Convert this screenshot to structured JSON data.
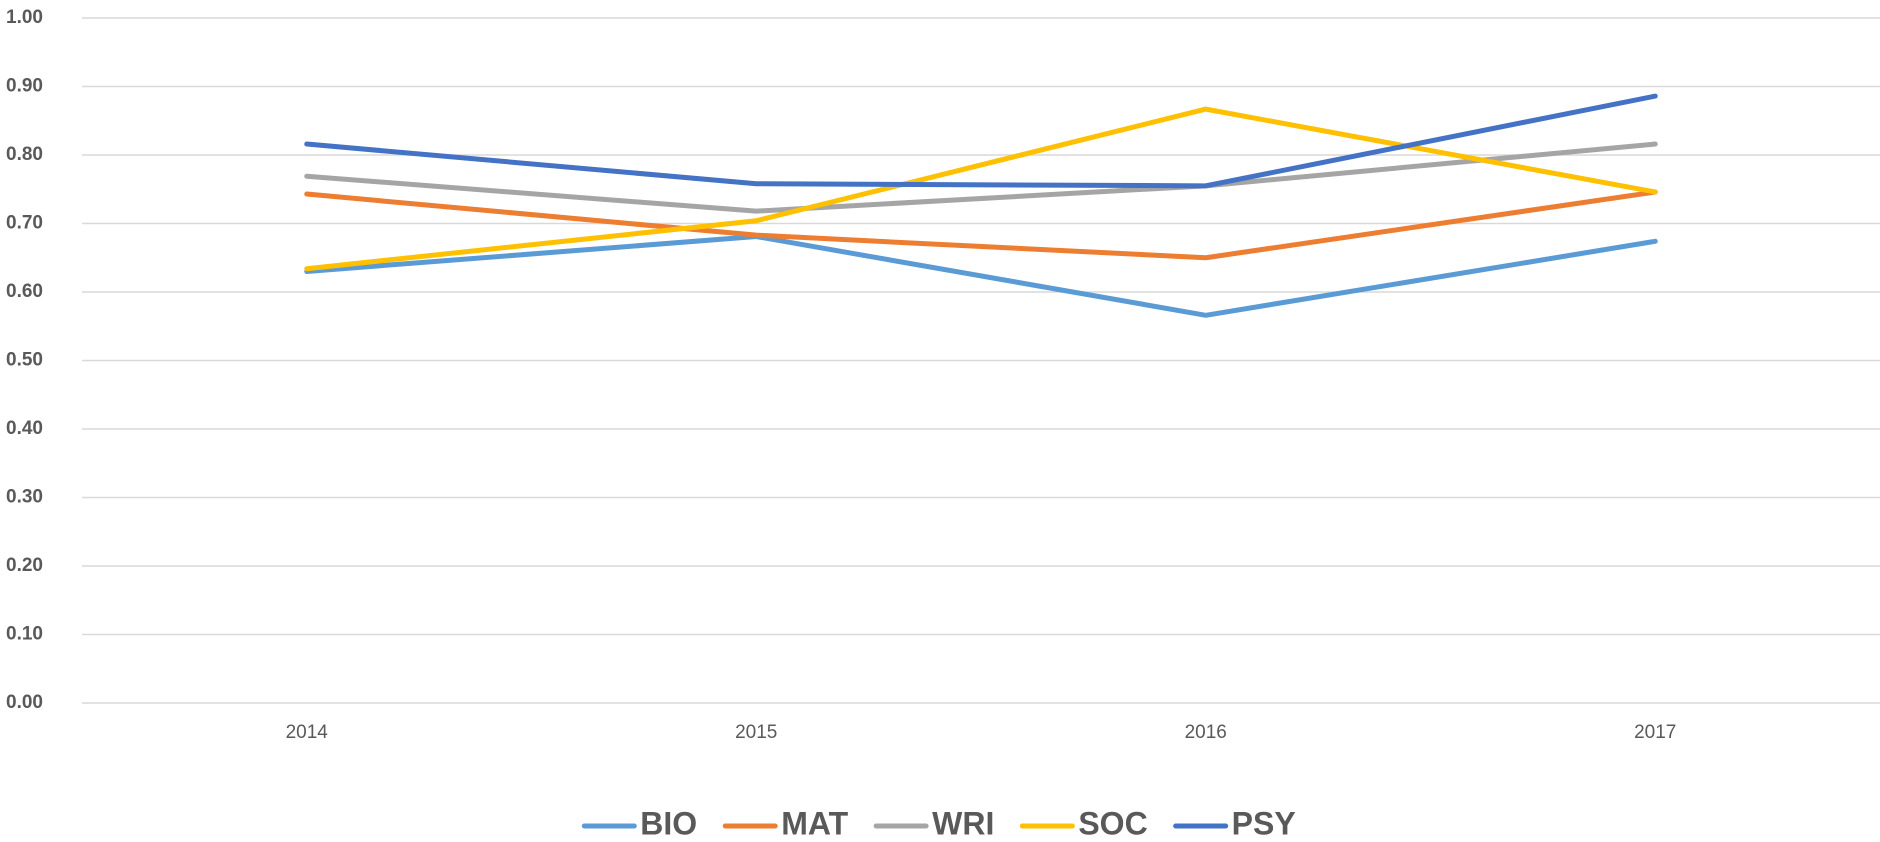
{
  "chart_data": {
    "type": "line",
    "categories": [
      "2014",
      "2015",
      "2016",
      "2017"
    ],
    "series": [
      {
        "name": "BIO",
        "color": "#5b9bd5",
        "values": [
          0.63,
          0.681,
          0.566,
          0.674
        ]
      },
      {
        "name": "MAT",
        "color": "#ed7d31",
        "values": [
          0.743,
          0.683,
          0.65,
          0.746
        ]
      },
      {
        "name": "WRI",
        "color": "#a5a5a5",
        "values": [
          0.769,
          0.718,
          0.755,
          0.816
        ]
      },
      {
        "name": "SOC",
        "color": "#ffc000",
        "values": [
          0.634,
          0.704,
          0.867,
          0.746
        ]
      },
      {
        "name": "PSY",
        "color": "#4472c4",
        "values": [
          0.816,
          0.758,
          0.755,
          0.886
        ]
      }
    ],
    "ylim": [
      0,
      1
    ],
    "yticks": [
      {
        "value": 0,
        "label": "0.00"
      },
      {
        "value": 0.1,
        "label": "0.10"
      },
      {
        "value": 0.2,
        "label": "0.20"
      },
      {
        "value": 0.3,
        "label": "0.30"
      },
      {
        "value": 0.4,
        "label": "0.40"
      },
      {
        "value": 0.5,
        "label": "0.50"
      },
      {
        "value": 0.6,
        "label": "0.60"
      },
      {
        "value": 0.7,
        "label": "0.70"
      },
      {
        "value": 0.8,
        "label": "0.80"
      },
      {
        "value": 0.9,
        "label": "0.90"
      },
      {
        "value": 1,
        "label": "1.00"
      }
    ],
    "grid": true,
    "legend": "bottom"
  }
}
